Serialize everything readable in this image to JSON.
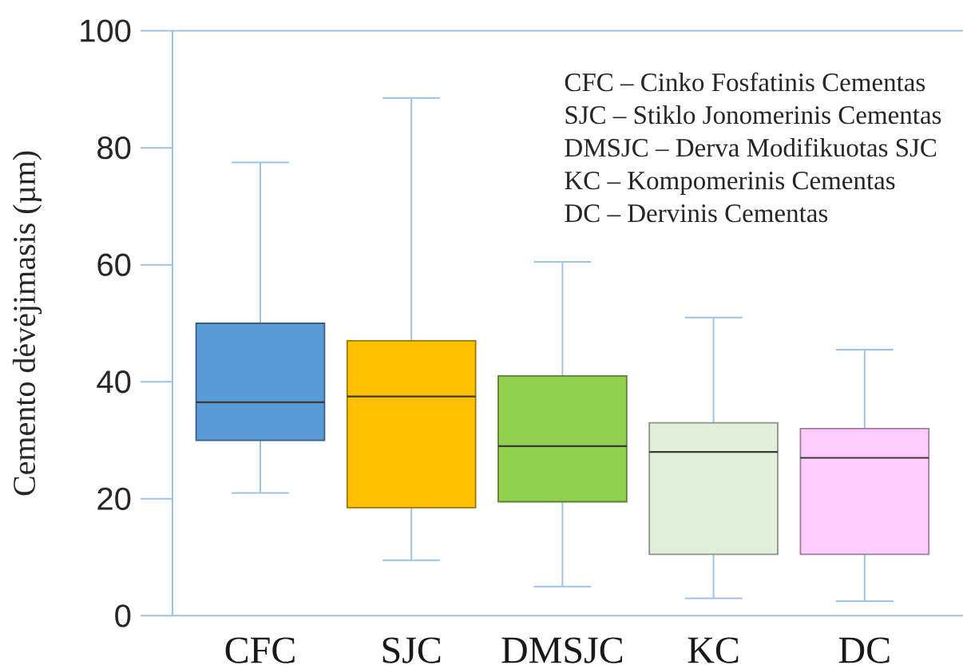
{
  "chart_data": {
    "type": "box",
    "ylabel": "Cemento dėvėjimasis (µm)",
    "categories": [
      "CFC",
      "SJC",
      "DMSJC",
      "KC",
      "DC"
    ],
    "boxes": [
      {
        "low": 21,
        "q1": 30,
        "median": 36.5,
        "q3": 50,
        "high": 77.5
      },
      {
        "low": 9.5,
        "q1": 18.5,
        "median": 37.5,
        "q3": 47,
        "high": 88.5
      },
      {
        "low": 5,
        "q1": 19.5,
        "median": 29,
        "q3": 41,
        "high": 60.5
      },
      {
        "low": 3,
        "q1": 10.5,
        "median": 28,
        "q3": 33,
        "high": 51
      },
      {
        "low": 2.5,
        "q1": 10.5,
        "median": 27,
        "q3": 32,
        "high": 45.5
      }
    ],
    "colors": [
      "#5b9bd5",
      "#ffc000",
      "#92d050",
      "#e2efda",
      "#ffccff"
    ],
    "ylim": [
      0,
      100
    ],
    "yticks": [
      0,
      20,
      40,
      60,
      80,
      100
    ],
    "annotations": [
      "CFC – Cinko Fosfatinis Cementas",
      "SJC – Stiklo Jonomerinis Cementas",
      "DMSJC – Derva Modifikuotas SJC",
      "KC – Kompomerinis Cementas",
      "DC – Dervinis Cementas"
    ]
  }
}
